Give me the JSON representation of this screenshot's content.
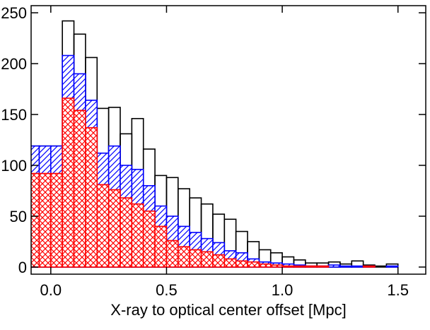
{
  "chart_data": {
    "type": "histogram",
    "xlabel": "X-ray to optical center offset [Mpc]",
    "bins": [
      -0.1,
      -0.05,
      0.0,
      0.05,
      0.1,
      0.15,
      0.2,
      0.25,
      0.3,
      0.35,
      0.4,
      0.45,
      0.5,
      0.55,
      0.6,
      0.65,
      0.7,
      0.75,
      0.8,
      0.85,
      0.9,
      0.95,
      1.0,
      1.05,
      1.1,
      1.15,
      1.2,
      1.25,
      1.3,
      1.35,
      1.4,
      1.45,
      1.5,
      1.55
    ],
    "series": [
      {
        "color": "#000000",
        "hatch": "none",
        "values": [
          119,
          119,
          119,
          242,
          229,
          206,
          156,
          157,
          131,
          146,
          116,
          90,
          88,
          77,
          68,
          62,
          52,
          47,
          35,
          25,
          17,
          14,
          10,
          7,
          4,
          4,
          5,
          3,
          6,
          2,
          1,
          3,
          0
        ]
      },
      {
        "color": "#0000ff",
        "hatch": "diagonal",
        "values": [
          119,
          119,
          119,
          208,
          190,
          164,
          112,
          119,
          100,
          96,
          80,
          60,
          50,
          40,
          34,
          28,
          24,
          16,
          14,
          8,
          5,
          4,
          3,
          2,
          1,
          1,
          2,
          1,
          1,
          1,
          0,
          1,
          0
        ]
      },
      {
        "color": "#ff0000",
        "hatch": "cross",
        "values": [
          92,
          92,
          92,
          166,
          154,
          137,
          81,
          76,
          68,
          62,
          55,
          40,
          26,
          20,
          17,
          15,
          12,
          8,
          6,
          5,
          3,
          2,
          1,
          1,
          1,
          1,
          0,
          0,
          0,
          1,
          0,
          0,
          0
        ]
      }
    ],
    "xlim": [
      -0.085,
      1.62
    ],
    "ylim": [
      -7,
      257
    ],
    "xticks": [
      {
        "value": 0,
        "label": "0.0"
      },
      {
        "value": 0.5,
        "label": "0.5"
      },
      {
        "value": 1,
        "label": "1.0"
      },
      {
        "value": 1.5,
        "label": "1.5"
      }
    ],
    "yticks": [
      0,
      50,
      100,
      150,
      200,
      250
    ]
  }
}
